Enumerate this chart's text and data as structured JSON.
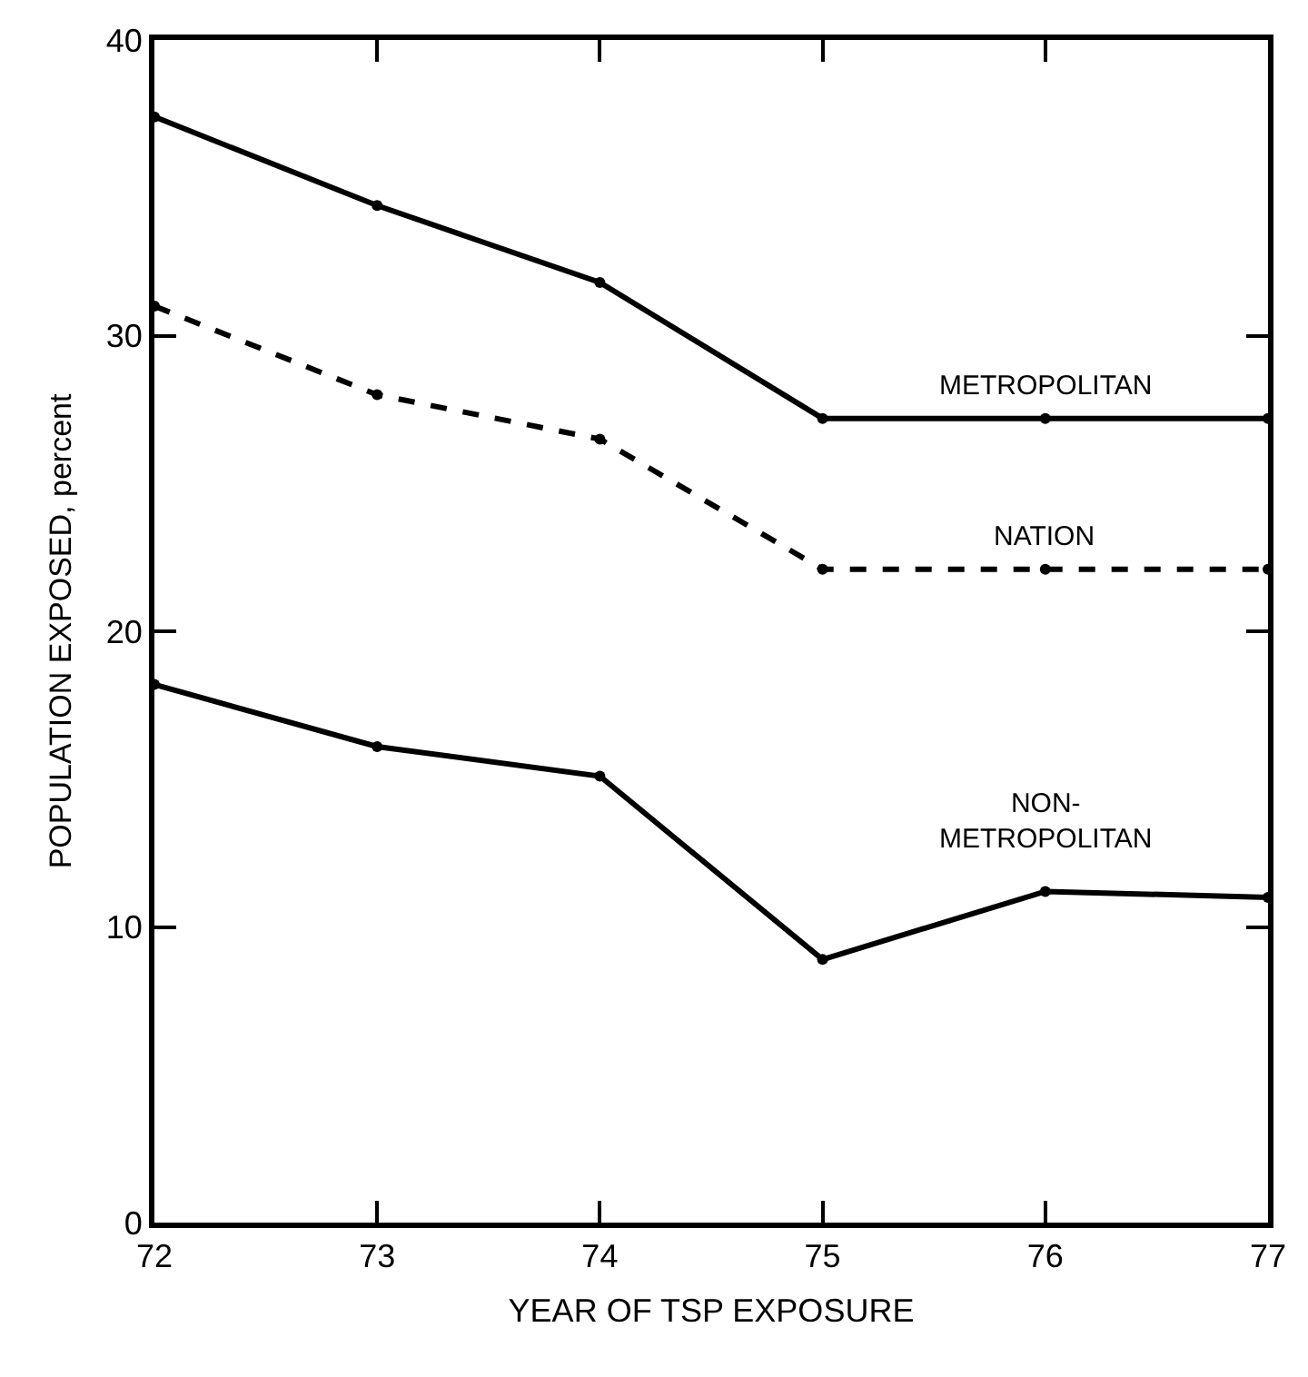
{
  "chart_data": {
    "type": "line",
    "xlabel": "YEAR OF TSP EXPOSURE",
    "ylabel": "POPULATION EXPOSED, percent",
    "x": [
      72,
      73,
      74,
      75,
      76,
      77
    ],
    "xlim": [
      72,
      77
    ],
    "xticks": [
      72,
      73,
      74,
      75,
      76,
      77
    ],
    "ylim": [
      0,
      40
    ],
    "yticks": [
      0,
      10,
      20,
      30,
      40
    ],
    "legend": false,
    "marker": "circle",
    "series": [
      {
        "name": "METROPOLITAN",
        "color": "#000000",
        "line_style": "solid",
        "values": [
          37.4,
          34.4,
          31.8,
          27.2,
          27.2,
          27.2
        ]
      },
      {
        "name": "NATION",
        "color": "#000000",
        "line_style": "dashed",
        "values": [
          31.0,
          28.0,
          26.5,
          22.1,
          22.1,
          22.1
        ]
      },
      {
        "name": "NON-\nMETROPOLITAN",
        "color": "#000000",
        "line_style": "solid",
        "values": [
          18.2,
          16.1,
          15.1,
          8.9,
          11.2,
          11.0
        ]
      }
    ]
  }
}
